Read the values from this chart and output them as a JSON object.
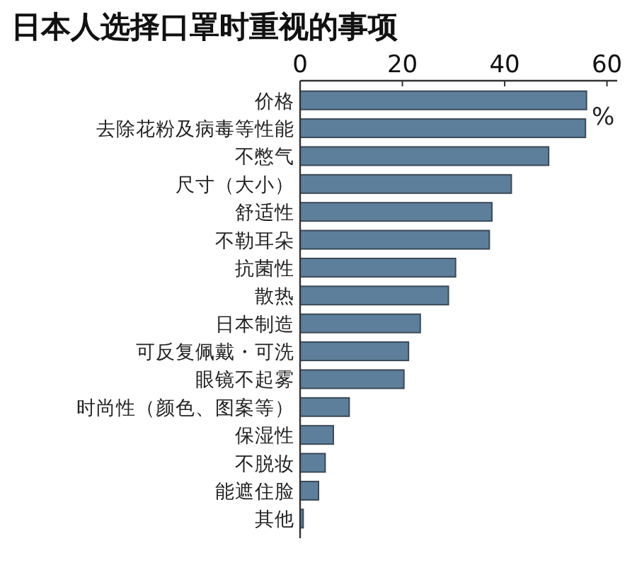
{
  "chart_data": {
    "type": "bar",
    "orientation": "horizontal",
    "title": "日本人选择口罩时重视的事项",
    "categories": [
      "价格",
      "去除花粉及病毒等性能",
      "不憋气",
      "尺寸（大小）",
      "舒适性",
      "不勒耳朵",
      "抗菌性",
      "散热",
      "日本制造",
      "可反复佩戴・可洗",
      "眼镜不起雾",
      "时尚性（颜色、图案等）",
      "保湿性",
      "不脱妆",
      "能遮住脸",
      "其他"
    ],
    "values": [
      56,
      55.8,
      48.6,
      41.3,
      37.5,
      37,
      30.4,
      29,
      23.5,
      21.2,
      20.3,
      9.6,
      6.5,
      4.9,
      3.6,
      0.6
    ],
    "color": "#5e7f9b",
    "xlim": [
      0,
      62
    ],
    "xticks": [
      0,
      20,
      40,
      60
    ],
    "annotations": [
      "%"
    ]
  }
}
